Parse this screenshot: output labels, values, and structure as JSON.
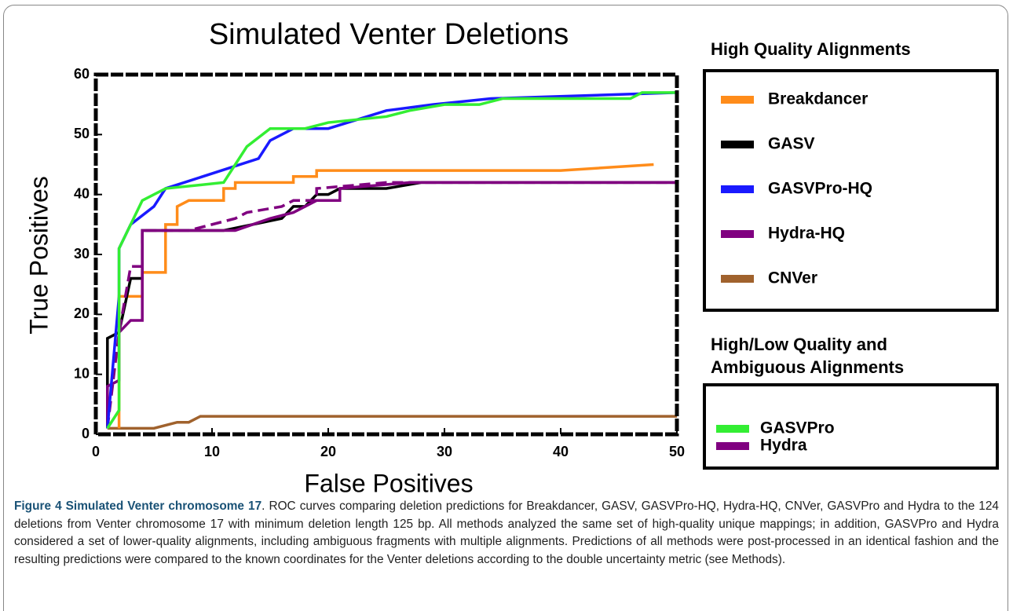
{
  "chart_data": {
    "type": "line",
    "title": "Simulated Venter Deletions",
    "x_label": "False Positives",
    "y_label": "True Positives",
    "xlim": [
      0,
      50
    ],
    "ylim": [
      0,
      60
    ],
    "xticks": [
      0,
      10,
      20,
      30,
      40,
      50
    ],
    "yticks": [
      0,
      10,
      20,
      30,
      40,
      50,
      60
    ],
    "grid": false,
    "legend_titles": [
      "High Quality Alignments",
      "High/Low Quality and Ambiguous Alignments"
    ],
    "series": [
      {
        "name": "Breakdancer",
        "color": "#ff8c1a",
        "dashed": false,
        "x": [
          2,
          2,
          4,
          4,
          6,
          6,
          7,
          7,
          8,
          11,
          11,
          12,
          12,
          17,
          17,
          19,
          19,
          40,
          48
        ],
        "values": [
          1,
          23,
          23,
          27,
          27,
          35,
          35,
          38,
          39,
          39,
          41,
          41,
          42,
          42,
          43,
          43,
          44,
          44,
          45
        ]
      },
      {
        "name": "GASV",
        "color": "#000000",
        "dashed": false,
        "x": [
          1,
          1,
          2,
          3,
          4,
          4,
          11,
          16,
          17,
          18,
          19,
          20,
          21,
          25,
          28,
          50
        ],
        "values": [
          1,
          16,
          17,
          26,
          26,
          34,
          34,
          36,
          38,
          38,
          40,
          40,
          41,
          41,
          42,
          42
        ]
      },
      {
        "name": "GASVPro-HQ",
        "color": "#1a1aff",
        "dashed": false,
        "x": [
          1,
          2,
          2,
          3,
          5,
          6,
          14,
          15,
          17,
          20,
          25,
          29,
          34,
          50
        ],
        "values": [
          1,
          23,
          31,
          35,
          38,
          41,
          46,
          49,
          51,
          51,
          54,
          55,
          56,
          57
        ]
      },
      {
        "name": "Hydra-HQ",
        "color": "#800080",
        "dashed": false,
        "x": [
          1,
          1,
          2,
          2,
          3,
          4,
          4,
          12,
          15,
          17,
          19,
          21,
          21,
          27,
          50
        ],
        "values": [
          1,
          8,
          9,
          17,
          19,
          19,
          34,
          34,
          36,
          37,
          39,
          39,
          41,
          42,
          42
        ]
      },
      {
        "name": "CNVer",
        "color": "#a0622d",
        "dashed": false,
        "x": [
          1,
          5,
          7,
          8,
          9,
          50
        ],
        "values": [
          1,
          1,
          2,
          2,
          3,
          3
        ]
      },
      {
        "name": "GASVPro",
        "color": "#33ee33",
        "dashed": false,
        "x": [
          1,
          2,
          2,
          3,
          4,
          6,
          11,
          12,
          13,
          15,
          18,
          20,
          25,
          27,
          30,
          33,
          35,
          46,
          47,
          50
        ],
        "values": [
          1,
          4,
          31,
          35,
          39,
          41,
          42,
          45,
          48,
          51,
          51,
          52,
          53,
          54,
          55,
          55,
          56,
          56,
          57,
          57
        ]
      },
      {
        "name": "Hydra",
        "color": "#800080",
        "dashed": true,
        "x": [
          1,
          2,
          3,
          4,
          4,
          8,
          12,
          13,
          16,
          17,
          19,
          19,
          25,
          50
        ],
        "values": [
          1,
          17,
          28,
          28,
          34,
          34,
          36,
          37,
          38,
          39,
          39,
          41,
          42,
          42
        ]
      }
    ]
  },
  "caption": {
    "label": "Figure 4 Simulated Venter chromosome 17",
    "text": ". ROC curves comparing deletion predictions for Breakdancer, GASV, GASVPro-HQ, Hydra-HQ, CNVer, GASVPro and Hydra to the 124 deletions from Venter chromosome 17 with minimum deletion length 125 bp. All methods analyzed the same set of high-quality unique mappings; in addition, GASVPro and Hydra considered a set of lower-quality alignments, including ambiguous fragments with multiple alignments. Predictions of all methods were post-processed in an identical fashion and the resulting predictions were compared to the known coordinates for the Venter deletions according to the double uncertainty metric (see Methods)."
  }
}
